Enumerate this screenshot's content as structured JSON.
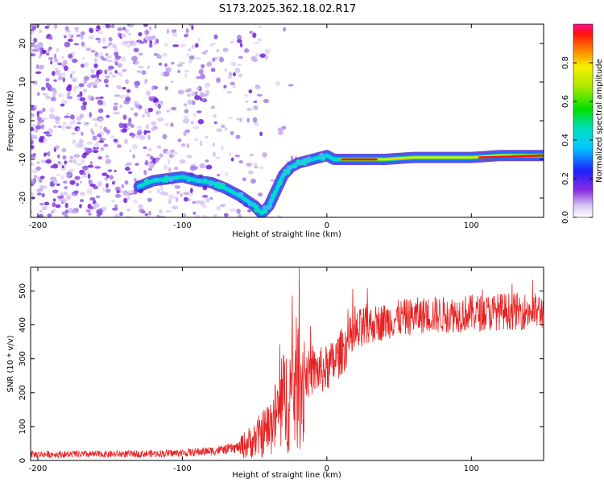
{
  "figure_title": "S173.2025.362.18.02.R17",
  "chart_data": [
    {
      "type": "heatmap",
      "title": "S173.2025.362.18.02.R17",
      "xlabel": "Height of straight line (km)",
      "ylabel": "Frequency (Hz)",
      "xlim": [
        -205,
        150
      ],
      "ylim": [
        -25,
        25
      ],
      "xticks": [
        -200,
        -100,
        0,
        100
      ],
      "yticks": [
        -20,
        -10,
        0,
        10,
        20
      ],
      "colorbar": {
        "label": "Normalized spectral amplitude",
        "range": [
          0,
          1
        ],
        "ticks": [
          "0.0",
          "0.2",
          "0.4",
          "0.6",
          "0.8"
        ],
        "tick_values": [
          0,
          0.2,
          0.4,
          0.6,
          0.8
        ]
      },
      "ridge_x": [
        -130,
        -120,
        -110,
        -100,
        -90,
        -80,
        -70,
        -60,
        -50,
        -45,
        -40,
        -35,
        -30,
        -25,
        -20,
        -15,
        -10,
        -5,
        0,
        5,
        10,
        20,
        40,
        60,
        80,
        100,
        120,
        150
      ],
      "ridge_freq": [
        -17,
        -15.5,
        -15,
        -14.5,
        -15.5,
        -16,
        -17.5,
        -19.5,
        -22,
        -24,
        -22,
        -18,
        -14,
        -12,
        -11,
        -10.5,
        -10,
        -9.5,
        -9,
        -10,
        -10,
        -10,
        -10,
        -9.5,
        -9.5,
        -9.5,
        -9,
        -9
      ]
    },
    {
      "type": "line",
      "xlabel": "Height of straight line (km)",
      "ylabel": "SNR (10 * v/v)",
      "xlim": [
        -205,
        150
      ],
      "ylim": [
        0,
        570
      ],
      "xticks": [
        -200,
        -100,
        0,
        100
      ],
      "yticks": [
        0,
        100,
        200,
        300,
        400,
        500
      ],
      "series": [
        {
          "name": "SNR",
          "color": "#e82020",
          "x": [
            -205,
            -180,
            -160,
            -140,
            -120,
            -100,
            -80,
            -70,
            -60,
            -50,
            -40,
            -35,
            -30,
            -25,
            -20,
            -15,
            -10,
            -5,
            0,
            5,
            10,
            15,
            20,
            25,
            30,
            40,
            50,
            60,
            70,
            80,
            90,
            100,
            110,
            120,
            130,
            140,
            150
          ],
          "y": [
            18,
            18,
            18,
            19,
            20,
            22,
            28,
            32,
            40,
            60,
            95,
            130,
            170,
            200,
            230,
            250,
            260,
            265,
            270,
            290,
            320,
            350,
            370,
            385,
            400,
            410,
            420,
            425,
            430,
            430,
            432,
            435,
            435,
            440,
            440,
            440,
            440
          ]
        }
      ]
    }
  ]
}
